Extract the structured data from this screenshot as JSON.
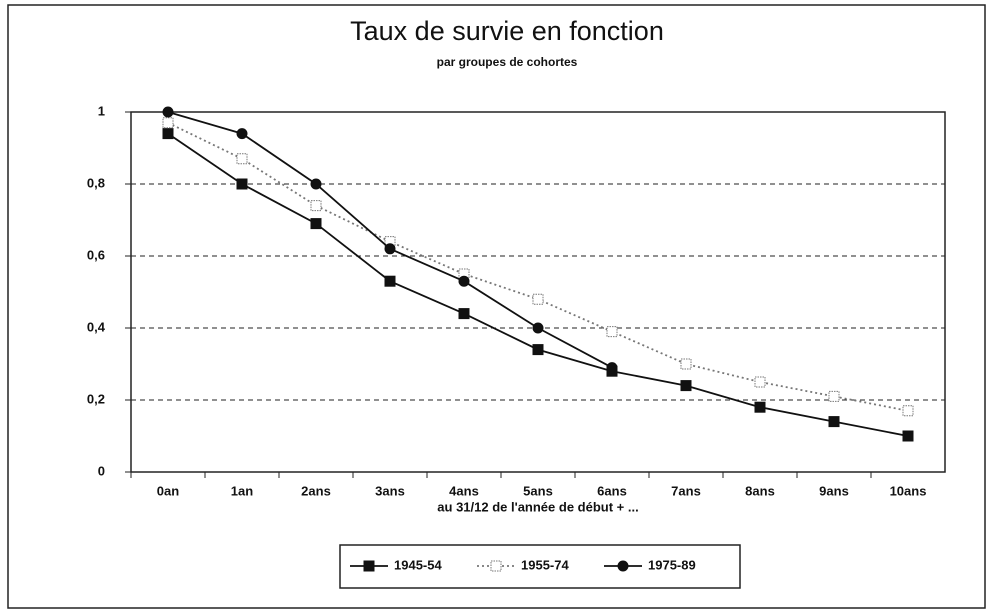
{
  "chart_data": {
    "type": "line",
    "title": "Taux de survie en fonction",
    "subtitle": "par groupes de cohortes",
    "x_label": "au 31/12 de l'année de début + ...",
    "categories": [
      "0an",
      "1an",
      "2ans",
      "3ans",
      "4ans",
      "5ans",
      "6ans",
      "7ans",
      "8ans",
      "9ans",
      "10ans"
    ],
    "series": [
      {
        "name": "1945-54",
        "color": "#111111",
        "marker": "square",
        "dash": "solid",
        "values": [
          0.94,
          0.8,
          0.69,
          0.53,
          0.44,
          0.34,
          0.28,
          0.24,
          0.18,
          0.14,
          0.1
        ]
      },
      {
        "name": "1955-74",
        "color": "#777777",
        "marker": "open-square",
        "dash": "dotted",
        "values": [
          0.97,
          0.87,
          0.74,
          0.64,
          0.55,
          0.48,
          0.39,
          0.3,
          0.25,
          0.21,
          0.17
        ]
      },
      {
        "name": "1975-89",
        "color": "#111111",
        "marker": "circle",
        "dash": "solid",
        "values": [
          1.0,
          0.94,
          0.8,
          0.62,
          0.53,
          0.4,
          0.29,
          null,
          null,
          null,
          null
        ]
      }
    ],
    "ylim": [
      0,
      1
    ],
    "yticks": [
      0,
      {
        "value": 0.2,
        "label": "0,2"
      },
      {
        "value": 0.4,
        "label": "0,4"
      },
      {
        "value": 0.6,
        "label": "0,6"
      },
      {
        "value": 0.8,
        "label": "0,8"
      },
      1
    ],
    "grid": true,
    "legend": "bottom"
  }
}
